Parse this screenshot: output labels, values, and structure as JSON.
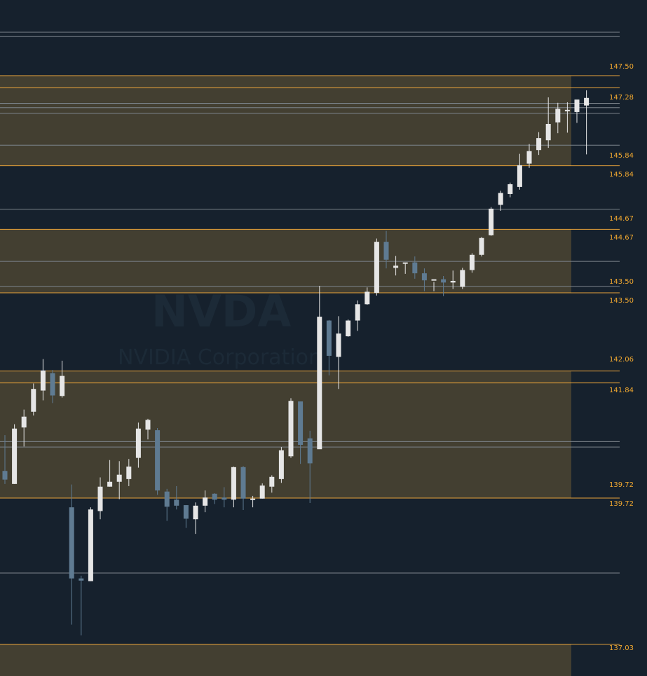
{
  "watermark": {
    "symbol": "NVDA",
    "company": "NVIDIA Corporation"
  },
  "colors": {
    "background": "#16212d",
    "zone_fill": "#433f31",
    "level_line": "#e8a33a",
    "gray_line": "#7d858d",
    "up_candle": "#e6e6e6",
    "down_candle": "#5f7b92",
    "label": "#f0a830"
  },
  "chart_data": {
    "type": "candlestick",
    "title": "",
    "xlabel": "",
    "ylabel": "",
    "ylim": [
      136.8,
      149.0
    ],
    "price_labels": [
      "147.50",
      "147.28",
      "145.84",
      "145.84",
      "144.67",
      "144.67",
      "143.50",
      "143.50",
      "142.06",
      "141.84",
      "139.72",
      "139.72",
      "137.03"
    ],
    "zones": [
      {
        "low": 145.84,
        "high": 147.5
      },
      {
        "low": 143.5,
        "high": 144.67
      },
      {
        "low": 139.72,
        "high": 142.06
      },
      {
        "low": 136.8,
        "high": 137.03
      }
    ],
    "levels": [
      147.5,
      147.28,
      145.84,
      144.67,
      143.5,
      142.06,
      141.84,
      139.72,
      137.03
    ],
    "reference_lines": [
      148.3,
      148.22,
      146.99,
      146.91,
      146.81,
      146.22,
      145.04,
      144.08,
      143.62,
      140.76,
      140.66,
      138.34
    ],
    "candles": [
      {
        "open": 140.22,
        "high": 140.88,
        "low": 139.98,
        "close": 140.06
      },
      {
        "open": 139.98,
        "high": 141.08,
        "low": 139.98,
        "close": 141.0
      },
      {
        "open": 141.02,
        "high": 141.35,
        "low": 140.67,
        "close": 141.22
      },
      {
        "open": 141.31,
        "high": 141.83,
        "low": 141.24,
        "close": 141.73
      },
      {
        "open": 141.7,
        "high": 142.28,
        "low": 141.52,
        "close": 142.07
      },
      {
        "open": 142.02,
        "high": 142.08,
        "low": 141.47,
        "close": 141.61
      },
      {
        "open": 141.6,
        "high": 142.25,
        "low": 141.57,
        "close": 141.97
      }
    ],
    "candles_mid": [
      {
        "open": 139.55,
        "high": 139.97,
        "low": 137.39,
        "close": 138.24
      },
      {
        "open": 138.24,
        "high": 138.29,
        "low": 137.19,
        "close": 138.2
      },
      {
        "open": 138.19,
        "high": 139.55,
        "low": 138.19,
        "close": 139.51
      },
      {
        "open": 139.48,
        "high": 140.1,
        "low": 139.33,
        "close": 139.93
      },
      {
        "open": 139.93,
        "high": 140.42,
        "low": 139.93,
        "close": 140.02
      },
      {
        "open": 140.02,
        "high": 140.4,
        "low": 139.7,
        "close": 140.15
      },
      {
        "open": 140.07,
        "high": 140.44,
        "low": 139.94,
        "close": 140.3
      },
      {
        "open": 140.46,
        "high": 141.11,
        "low": 140.28,
        "close": 141.0
      },
      {
        "open": 140.98,
        "high": 141.18,
        "low": 140.8,
        "close": 141.16
      },
      {
        "open": 140.97,
        "high": 141.01,
        "low": 139.78,
        "close": 139.86
      },
      {
        "open": 139.84,
        "high": 139.89,
        "low": 139.3,
        "close": 139.56
      },
      {
        "open": 139.69,
        "high": 139.94,
        "low": 139.51,
        "close": 139.58
      },
      {
        "open": 139.59,
        "high": 139.59,
        "low": 139.17,
        "close": 139.34
      },
      {
        "open": 139.33,
        "high": 139.64,
        "low": 139.06,
        "close": 139.58
      },
      {
        "open": 139.58,
        "high": 139.86,
        "low": 139.46,
        "close": 139.73
      },
      {
        "open": 139.8,
        "high": 139.81,
        "low": 139.61,
        "close": 139.69
      },
      {
        "open": 139.73,
        "high": 139.92,
        "low": 139.55,
        "close": 139.69
      },
      {
        "open": 139.69,
        "high": 140.3,
        "low": 139.55,
        "close": 140.29
      }
    ],
    "candles_late": [
      {
        "open": 140.29,
        "high": 140.31,
        "low": 139.5,
        "close": 139.71
      },
      {
        "open": 139.71,
        "high": 139.76,
        "low": 139.55,
        "close": 139.71
      },
      {
        "open": 139.71,
        "high": 139.99,
        "low": 139.71,
        "close": 139.95
      },
      {
        "open": 139.93,
        "high": 140.14,
        "low": 139.82,
        "close": 140.11
      },
      {
        "open": 140.07,
        "high": 140.66,
        "low": 140.0,
        "close": 140.6
      },
      {
        "open": 140.49,
        "high": 141.56,
        "low": 140.46,
        "close": 141.51
      },
      {
        "open": 141.5,
        "high": 141.5,
        "low": 140.35,
        "close": 140.7
      },
      {
        "open": 140.82,
        "high": 140.96,
        "low": 139.63,
        "close": 140.36
      },
      {
        "open": 140.62,
        "high": 143.63,
        "low": 140.9,
        "close": 143.06
      },
      {
        "open": 142.99,
        "high": 143.0,
        "low": 141.98,
        "close": 142.34
      },
      {
        "open": 142.32,
        "high": 143.07,
        "low": 141.73,
        "close": 142.75
      },
      {
        "open": 142.7,
        "high": 143.01,
        "low": 142.69,
        "close": 142.99
      },
      {
        "open": 142.99,
        "high": 143.36,
        "low": 142.8,
        "close": 143.29
      },
      {
        "open": 143.29,
        "high": 143.6,
        "low": 143.28,
        "close": 143.52
      },
      {
        "open": 143.5,
        "high": 144.5,
        "low": 143.45,
        "close": 144.44
      },
      {
        "open": 144.44,
        "high": 144.64,
        "low": 143.95,
        "close": 144.11
      },
      {
        "open": 143.96,
        "high": 144.18,
        "low": 143.82,
        "close": 144.0
      },
      {
        "open": 144.06,
        "high": 144.04,
        "low": 143.85,
        "close": 144.06
      }
    ],
    "candles_end": [
      {
        "open": 144.06,
        "high": 144.17,
        "low": 143.76,
        "close": 143.86
      },
      {
        "open": 143.86,
        "high": 143.95,
        "low": 143.53,
        "close": 143.73
      },
      {
        "open": 143.73,
        "high": 143.7,
        "low": 143.53,
        "close": 143.75
      },
      {
        "open": 143.75,
        "high": 143.81,
        "low": 143.44,
        "close": 143.69
      },
      {
        "open": 143.69,
        "high": 143.91,
        "low": 143.57,
        "close": 143.72
      },
      {
        "open": 143.61,
        "high": 143.96,
        "low": 143.57,
        "close": 143.92
      },
      {
        "open": 143.92,
        "high": 144.23,
        "low": 143.87,
        "close": 144.2
      },
      {
        "open": 144.2,
        "high": 144.53,
        "low": 144.17,
        "close": 144.51
      },
      {
        "open": 144.56,
        "high": 145.08,
        "low": 144.55,
        "close": 145.05
      },
      {
        "open": 145.12,
        "high": 145.38,
        "low": 145.01,
        "close": 145.34
      },
      {
        "open": 145.32,
        "high": 145.53,
        "low": 145.26,
        "close": 145.5
      },
      {
        "open": 145.45,
        "high": 146.06,
        "low": 145.4,
        "close": 145.85
      },
      {
        "open": 145.88,
        "high": 146.24,
        "low": 145.8,
        "close": 146.11
      },
      {
        "open": 146.13,
        "high": 146.46,
        "low": 146.04,
        "close": 146.35
      },
      {
        "open": 146.31,
        "high": 147.1,
        "low": 146.17,
        "close": 146.61
      },
      {
        "open": 146.64,
        "high": 147.0,
        "low": 146.44,
        "close": 146.89
      },
      {
        "open": 146.87,
        "high": 147.01,
        "low": 146.45,
        "close": 146.87
      },
      {
        "open": 146.83,
        "high": 147.05,
        "low": 146.63,
        "close": 147.06
      },
      {
        "open": 146.95,
        "high": 147.23,
        "low": 146.05,
        "close": 147.09
      }
    ]
  }
}
